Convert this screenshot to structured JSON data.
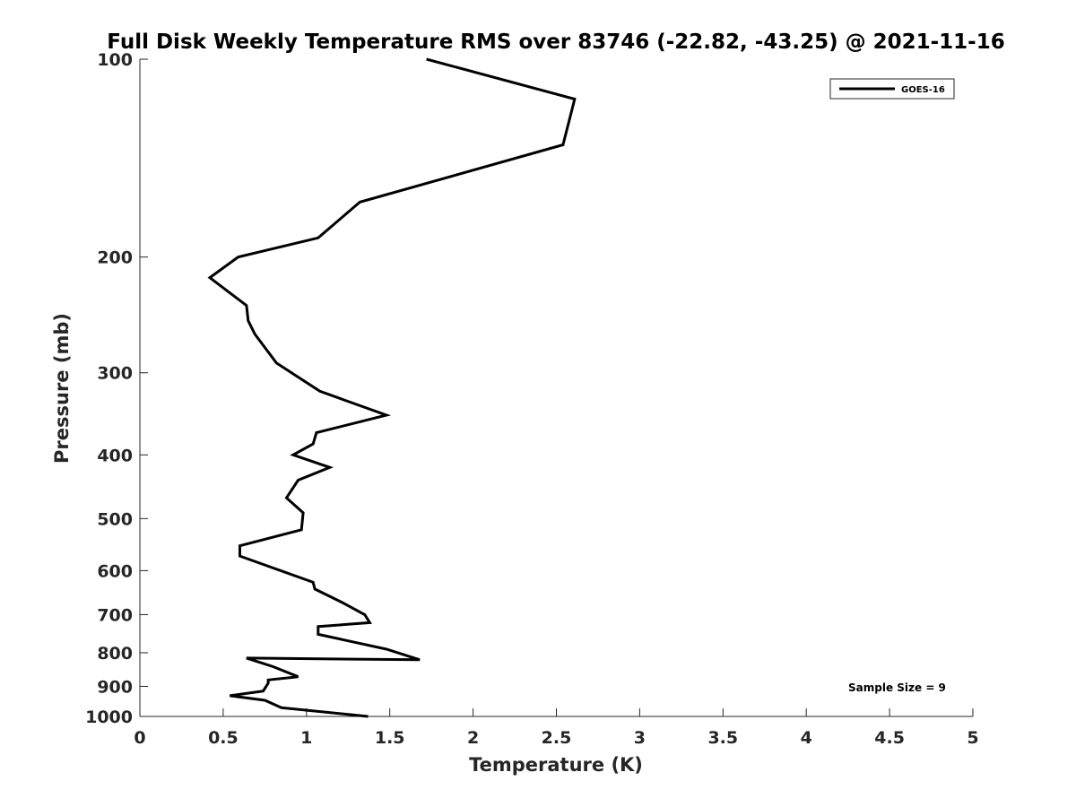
{
  "chart_data": {
    "type": "line",
    "title": "Full Disk Weekly Temperature RMS over 83746 (-22.82, -43.25) @ 2021-11-16",
    "xlabel": "Temperature (K)",
    "ylabel": "Pressure (mb)",
    "xlim": [
      0,
      5
    ],
    "ylim": [
      100,
      1000
    ],
    "yscale": "log",
    "y_reversed": true,
    "x_ticks": [
      "0",
      "0.5",
      "1",
      "1.5",
      "2",
      "2.5",
      "3",
      "3.5",
      "4",
      "4.5",
      "5"
    ],
    "y_ticks": [
      "100",
      "200",
      "300",
      "400",
      "500",
      "600",
      "700",
      "800",
      "900",
      "1000"
    ],
    "grid": false,
    "legend_position": "top-right",
    "line_color": "#000000",
    "series": [
      {
        "name": "GOES-16",
        "x": [
          1.72,
          2.61,
          2.54,
          1.32,
          1.07,
          0.59,
          0.42,
          0.64,
          0.65,
          0.69,
          0.82,
          1.08,
          1.48,
          1.06,
          1.04,
          0.92,
          1.14,
          0.95,
          0.88,
          0.98,
          0.97,
          0.6,
          0.6,
          1.04,
          1.05,
          1.21,
          1.35,
          1.38,
          1.07,
          1.07,
          1.48,
          1.68,
          0.64,
          0.8,
          0.95,
          0.77,
          0.77,
          0.74,
          0.54,
          0.75,
          0.85,
          1.37
        ],
        "y": [
          100,
          115,
          135,
          165,
          187,
          200,
          215,
          237,
          250,
          262,
          290,
          320,
          348,
          370,
          385,
          400,
          418,
          437,
          465,
          490,
          520,
          550,
          570,
          625,
          640,
          670,
          700,
          720,
          730,
          750,
          790,
          820,
          815,
          840,
          870,
          880,
          890,
          915,
          930,
          945,
          970,
          1000
        ]
      }
    ],
    "annotations": [
      "Sample Size = 9"
    ]
  }
}
